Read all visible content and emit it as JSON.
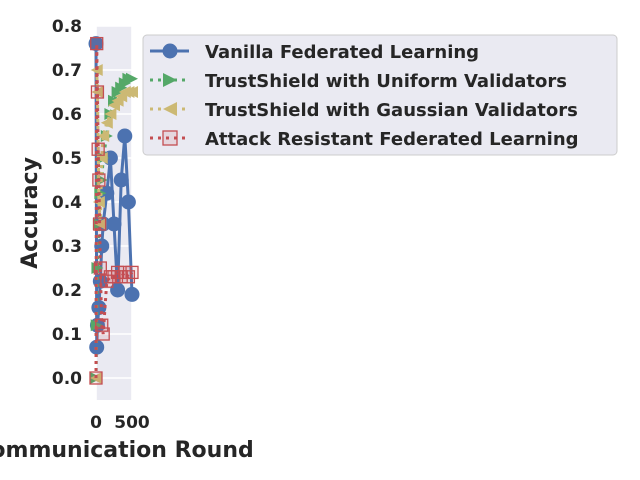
{
  "chart_data": {
    "type": "line",
    "xlabel": "Communication Round",
    "ylabel": "Accuracy",
    "xlim": [
      0,
      500
    ],
    "ylim": [
      -0.05,
      0.8
    ],
    "x_ticks": [
      "0",
      "500"
    ],
    "y_ticks": [
      "0.0",
      "0.1",
      "0.2",
      "0.3",
      "0.4",
      "0.5",
      "0.6",
      "0.7",
      "0.8"
    ],
    "grid": true,
    "legend_position": "top-right",
    "series": [
      {
        "name": "Vanilla Federated Learning",
        "color": "#4c72b0",
        "marker": "circle",
        "line_style": "solid",
        "x": [
          0,
          10,
          20,
          40,
          60,
          80,
          100,
          150,
          200,
          250,
          300,
          350,
          400,
          450,
          500
        ],
        "y": [
          0.76,
          0.07,
          0.12,
          0.16,
          0.22,
          0.3,
          0.35,
          0.42,
          0.5,
          0.35,
          0.2,
          0.45,
          0.55,
          0.4,
          0.19
        ]
      },
      {
        "name": "TrustShield with Uniform Validators",
        "color": "#55a868",
        "marker": "triangle-right",
        "line_style": "dotted",
        "x": [
          0,
          10,
          20,
          40,
          60,
          80,
          100,
          150,
          200,
          250,
          300,
          350,
          400,
          450,
          500
        ],
        "y": [
          0.0,
          0.12,
          0.25,
          0.35,
          0.42,
          0.45,
          0.5,
          0.55,
          0.6,
          0.63,
          0.65,
          0.66,
          0.67,
          0.68,
          0.68
        ]
      },
      {
        "name": "TrustShield with Gaussian Validators",
        "color": "#ccb974",
        "marker": "triangle-left",
        "line_style": "dotted",
        "x": [
          0,
          10,
          20,
          40,
          60,
          80,
          100,
          150,
          200,
          250,
          300,
          350,
          400,
          450,
          500
        ],
        "y": [
          0.0,
          0.7,
          0.65,
          0.4,
          0.35,
          0.5,
          0.55,
          0.58,
          0.6,
          0.62,
          0.63,
          0.64,
          0.65,
          0.65,
          0.65
        ]
      },
      {
        "name": "Attack Resistant Federated Learning",
        "color": "#c44e52",
        "marker": "square-open",
        "line_style": "dotted",
        "x": [
          0,
          10,
          20,
          30,
          40,
          50,
          60,
          80,
          100,
          150,
          200,
          250,
          300,
          350,
          400,
          450,
          500
        ],
        "y": [
          0.0,
          0.76,
          0.65,
          0.52,
          0.45,
          0.35,
          0.25,
          0.12,
          0.1,
          0.22,
          0.23,
          0.23,
          0.24,
          0.23,
          0.24,
          0.23,
          0.24
        ]
      }
    ]
  }
}
